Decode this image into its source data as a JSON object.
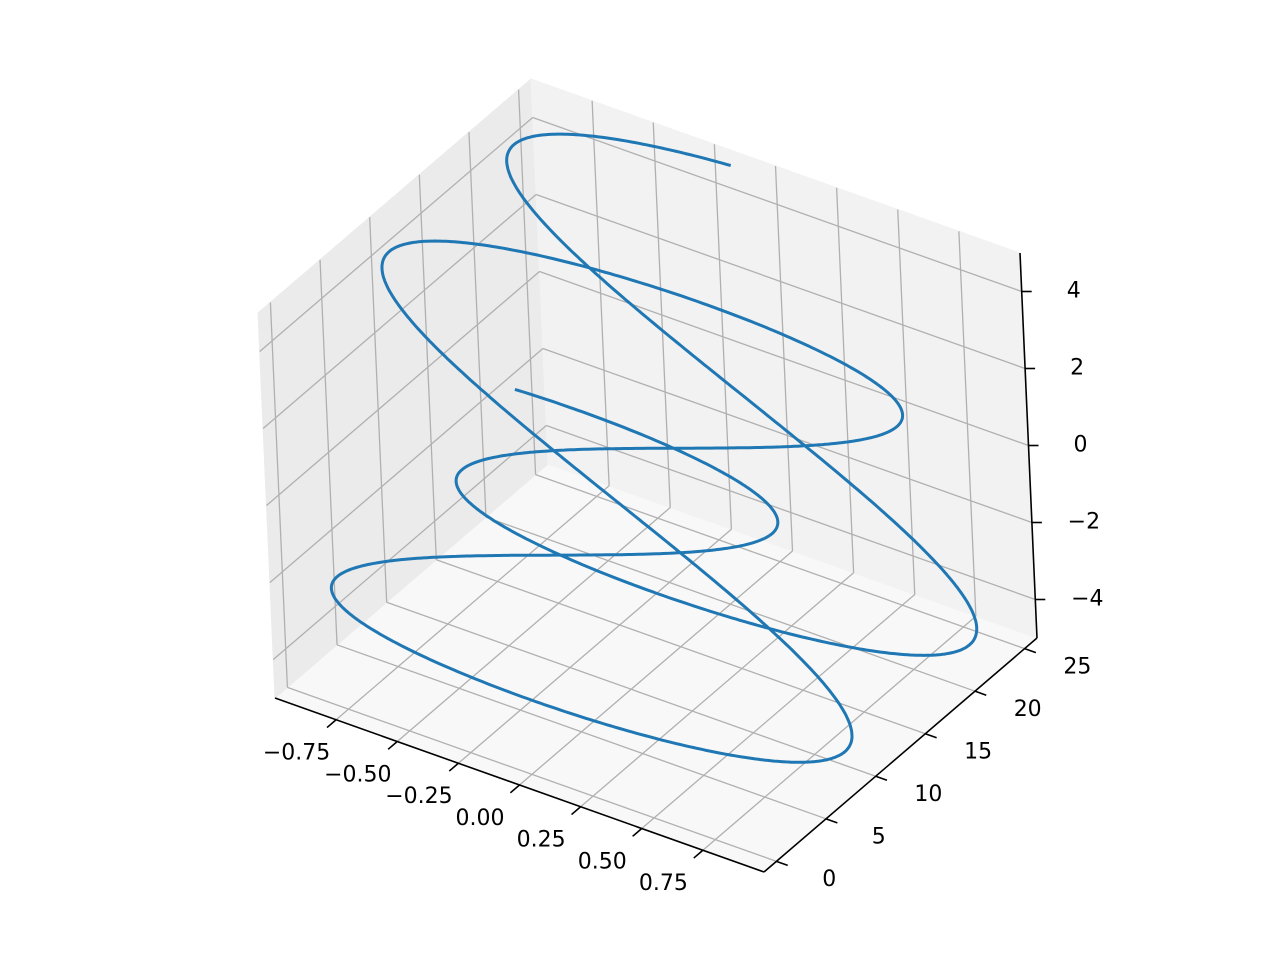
{
  "chart_data": {
    "type": "line",
    "projection": "3d",
    "title": "",
    "xlabel": "",
    "ylabel": "",
    "zlabel": "",
    "grid": true,
    "colors": {
      "line": "#1f77b4",
      "pane_back": "#f2f2f2",
      "pane_side": "#ebebeb",
      "pane_floor": "#f8f8f8",
      "grid": "#b0b0b0",
      "axis": "#000000"
    },
    "xlim": [
      -1.0,
      1.0
    ],
    "ylim": [
      -1.25,
      26.25
    ],
    "zlim": [
      -5.0,
      5.0
    ],
    "xticks": [
      {
        "value": -0.75,
        "label": "−0.75"
      },
      {
        "value": -0.5,
        "label": "−0.50"
      },
      {
        "value": -0.25,
        "label": "−0.25"
      },
      {
        "value": 0.0,
        "label": "0.00"
      },
      {
        "value": 0.25,
        "label": "0.25"
      },
      {
        "value": 0.5,
        "label": "0.50"
      },
      {
        "value": 0.75,
        "label": "0.75"
      }
    ],
    "yticks": [
      {
        "value": 0,
        "label": "0"
      },
      {
        "value": 5,
        "label": "5"
      },
      {
        "value": 10,
        "label": "10"
      },
      {
        "value": 15,
        "label": "15"
      },
      {
        "value": 20,
        "label": "20"
      },
      {
        "value": 25,
        "label": "25"
      }
    ],
    "zticks": [
      {
        "value": -4,
        "label": "−4"
      },
      {
        "value": -2,
        "label": "−2"
      },
      {
        "value": 0,
        "label": "0"
      },
      {
        "value": 2,
        "label": "2"
      },
      {
        "value": 4,
        "label": "4"
      }
    ],
    "series": [
      {
        "curve": "parametric",
        "x": "sin(t)",
        "y": "t",
        "z": "5*cos(t/2)",
        "t_range": [
          0,
          25
        ]
      }
    ]
  }
}
